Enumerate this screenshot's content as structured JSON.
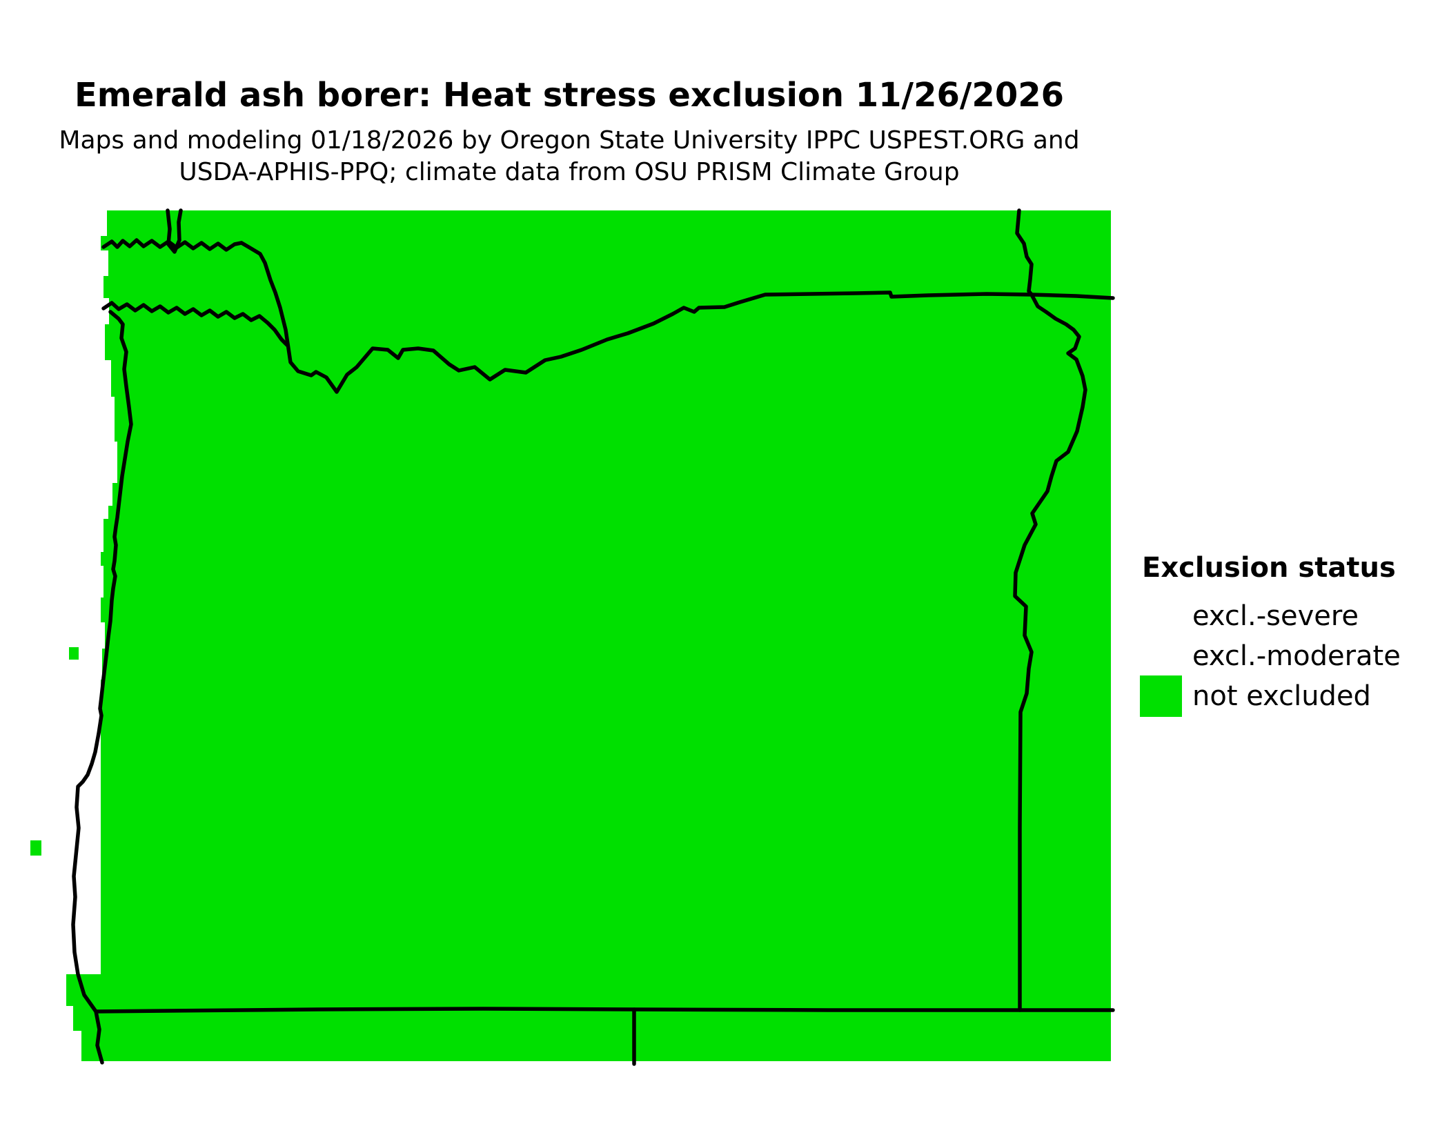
{
  "title": "Emerald ash borer: Heat stress exclusion 11/26/2026",
  "subtitle_line1": "Maps and modeling 01/18/2026 by Oregon State University IPPC USPEST.ORG and",
  "subtitle_line2": "USDA-APHIS-PPQ; climate data from OSU PRISM Climate Group",
  "legend": {
    "heading": "Exclusion status",
    "items": [
      {
        "label": "excl.-severe",
        "swatch_color": "#ffffff"
      },
      {
        "label": "excl.-moderate",
        "swatch_color": "#ffffff"
      },
      {
        "label": "not excluded",
        "swatch_color": "#00e000"
      }
    ]
  },
  "map": {
    "not_excluded_color": "#00e000",
    "border_color": "#000000",
    "ocean_color": "#ffffff"
  }
}
